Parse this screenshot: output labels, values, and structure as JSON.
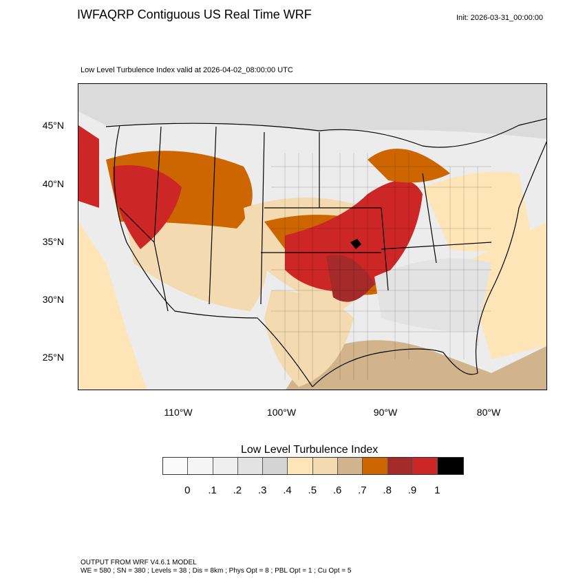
{
  "header": {
    "title": "IWFAQRP Contiguous US Real Time WRF",
    "init": "Init: 2026-03-31_00:00:00"
  },
  "chart_data": {
    "type": "heatmap",
    "title": "Low Level Turbulence Index valid at 2026-04-02_08:00:00 UTC",
    "variable": "Low Level Turbulence Index",
    "lat_ticks": [
      "45°N",
      "40°N",
      "35°N",
      "30°N",
      "25°N"
    ],
    "lon_ticks": [
      "110°W",
      "100°W",
      "90°W",
      "80°W"
    ],
    "lat_range": [
      22,
      48
    ],
    "lon_range": [
      -120,
      -75
    ],
    "colorbar": {
      "title": "Low Level Turbulence Index",
      "levels": [
        "0",
        ".1",
        ".2",
        ".3",
        ".4",
        ".5",
        ".6",
        ".7",
        ".8",
        ".9",
        "1"
      ],
      "colors": [
        "#fafafa",
        "#f5f5f5",
        "#efefef",
        "#e3e3e3",
        "#d4d4d4",
        "#fee5b8",
        "#f3dab0",
        "#d2b48c",
        "#cd6600",
        "#a52a2a",
        "#cd2626",
        "#000000"
      ]
    }
  },
  "footer": {
    "line1": "OUTPUT FROM WRF V4.6.1 MODEL",
    "line2": "WE = 580 ; SN = 380 ; Levels = 38 ; Dis = 8km ; Phys Opt = 8 ; PBL Opt = 1 ; Cu Opt = 5"
  }
}
